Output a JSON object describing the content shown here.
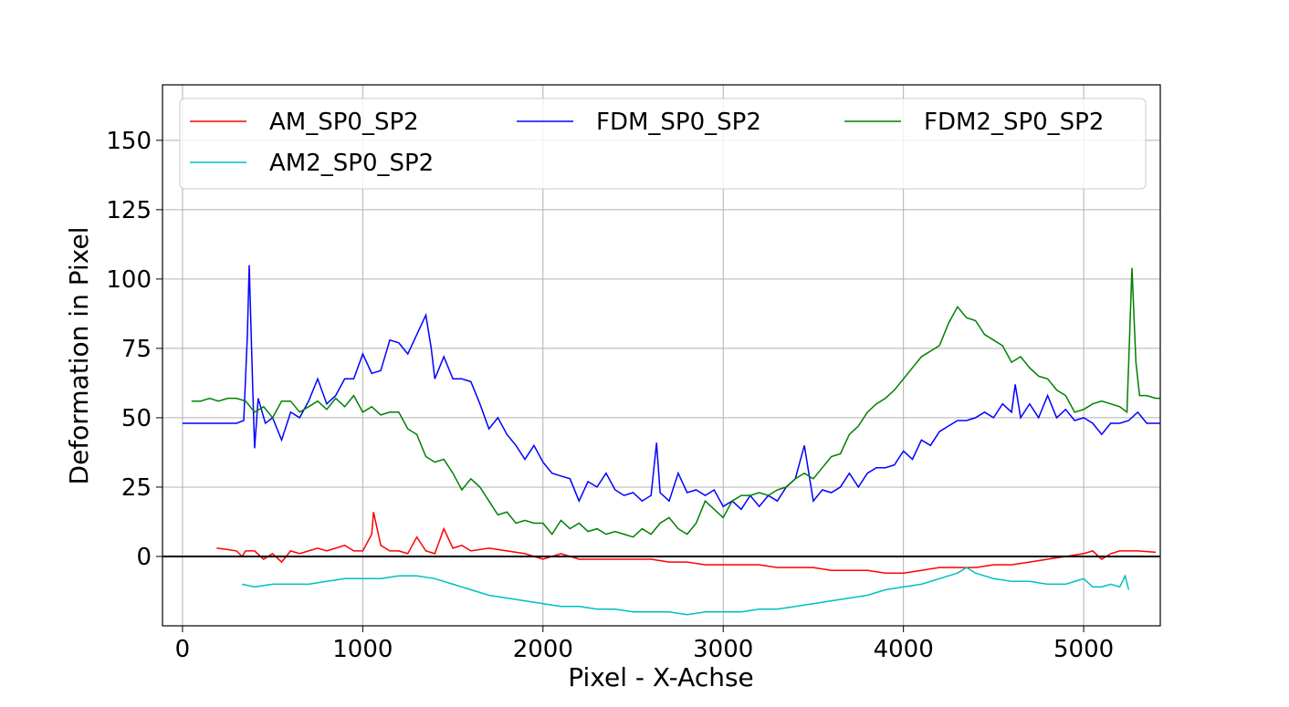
{
  "chart_data": {
    "type": "line",
    "x_label": "Pixel - X-Achse",
    "y_label": "Deformation in Pixel",
    "xlim": [
      -111,
      5425
    ],
    "ylim": [
      -25,
      170
    ],
    "xticks": [
      0,
      1000,
      2000,
      3000,
      4000,
      5000
    ],
    "yticks": [
      0,
      25,
      50,
      75,
      100,
      125,
      150
    ],
    "grid": true,
    "hline": 0,
    "legend": "upper center",
    "series": [
      {
        "name": "AM_SP0_SP2",
        "color": "#ff0000",
        "x": [
          190,
          250,
          300,
          330,
          350,
          400,
          450,
          500,
          550,
          600,
          650,
          700,
          750,
          800,
          850,
          900,
          950,
          1000,
          1050,
          1060,
          1100,
          1150,
          1200,
          1250,
          1300,
          1350,
          1400,
          1450,
          1500,
          1550,
          1600,
          1700,
          1800,
          1900,
          2000,
          2100,
          2200,
          2300,
          2400,
          2500,
          2600,
          2700,
          2800,
          2900,
          3000,
          3100,
          3200,
          3300,
          3400,
          3500,
          3600,
          3700,
          3800,
          3900,
          4000,
          4100,
          4200,
          4300,
          4400,
          4500,
          4600,
          4700,
          4800,
          4900,
          5000,
          5050,
          5100,
          5150,
          5200,
          5300,
          5400
        ],
        "values": [
          3,
          2.5,
          2,
          0,
          2,
          2,
          -1,
          1,
          -2,
          2,
          1,
          2,
          3,
          2,
          3,
          4,
          2,
          2,
          8,
          16,
          4,
          2,
          2,
          1,
          7,
          2,
          1,
          10,
          3,
          4,
          2,
          3,
          2,
          1,
          -1,
          1,
          -1,
          -1,
          -1,
          -1,
          -1,
          -2,
          -2,
          -3,
          -3,
          -3,
          -3,
          -4,
          -4,
          -4,
          -5,
          -5,
          -5,
          -6,
          -6,
          -5,
          -4,
          -4,
          -4,
          -3,
          -3,
          -2,
          -1,
          0,
          1,
          2,
          -1,
          1,
          2,
          2,
          1.5
        ]
      },
      {
        "name": "AM2_SP0_SP2",
        "color": "#00bfbf",
        "x": [
          330,
          400,
          500,
          600,
          700,
          800,
          900,
          1000,
          1100,
          1200,
          1300,
          1400,
          1500,
          1600,
          1700,
          1800,
          1900,
          2000,
          2100,
          2200,
          2300,
          2400,
          2500,
          2600,
          2700,
          2800,
          2900,
          3000,
          3100,
          3200,
          3300,
          3400,
          3500,
          3600,
          3700,
          3800,
          3900,
          4000,
          4100,
          4200,
          4300,
          4350,
          4400,
          4500,
          4600,
          4700,
          4800,
          4900,
          5000,
          5050,
          5100,
          5150,
          5200,
          5230,
          5250
        ],
        "values": [
          -10,
          -11,
          -10,
          -10,
          -10,
          -9,
          -8,
          -8,
          -8,
          -7,
          -7,
          -8,
          -10,
          -12,
          -14,
          -15,
          -16,
          -17,
          -18,
          -18,
          -19,
          -19,
          -20,
          -20,
          -20,
          -21,
          -20,
          -20,
          -20,
          -19,
          -19,
          -18,
          -17,
          -16,
          -15,
          -14,
          -12,
          -11,
          -10,
          -8,
          -6,
          -4,
          -6,
          -8,
          -9,
          -9,
          -10,
          -10,
          -8,
          -11,
          -11,
          -10,
          -11,
          -7,
          -12
        ]
      },
      {
        "name": "FDM_SP0_SP2",
        "color": "#0000ff",
        "x": [
          0,
          100,
          200,
          300,
          340,
          360,
          370,
          390,
          400,
          420,
          460,
          500,
          550,
          600,
          650,
          700,
          750,
          800,
          850,
          900,
          950,
          1000,
          1050,
          1100,
          1150,
          1200,
          1250,
          1300,
          1350,
          1380,
          1400,
          1450,
          1500,
          1550,
          1600,
          1650,
          1700,
          1750,
          1800,
          1850,
          1900,
          1950,
          2000,
          2050,
          2100,
          2150,
          2200,
          2250,
          2300,
          2350,
          2400,
          2450,
          2500,
          2550,
          2600,
          2630,
          2650,
          2700,
          2750,
          2800,
          2850,
          2900,
          2950,
          3000,
          3050,
          3100,
          3150,
          3200,
          3250,
          3300,
          3350,
          3400,
          3450,
          3500,
          3550,
          3600,
          3650,
          3700,
          3750,
          3800,
          3850,
          3900,
          3950,
          4000,
          4050,
          4100,
          4150,
          4200,
          4250,
          4300,
          4350,
          4400,
          4450,
          4500,
          4550,
          4600,
          4620,
          4650,
          4700,
          4750,
          4800,
          4850,
          4900,
          4950,
          5000,
          5050,
          5100,
          5150,
          5200,
          5250,
          5300,
          5350,
          5400,
          5425
        ],
        "values": [
          48,
          48,
          48,
          48,
          49,
          80,
          105,
          60,
          39,
          57,
          48,
          50,
          42,
          52,
          50,
          56,
          64,
          55,
          58,
          64,
          64,
          73,
          66,
          67,
          78,
          77,
          73,
          80,
          87,
          75,
          64,
          72,
          64,
          64,
          63,
          55,
          46,
          50,
          44,
          40,
          35,
          40,
          34,
          30,
          29,
          28,
          20,
          27,
          25,
          30,
          24,
          22,
          23,
          20,
          22,
          41,
          23,
          20,
          30,
          23,
          24,
          22,
          24,
          18,
          20,
          17,
          22,
          18,
          22,
          20,
          25,
          28,
          40,
          20,
          24,
          23,
          25,
          30,
          25,
          30,
          32,
          32,
          33,
          38,
          35,
          42,
          40,
          45,
          47,
          49,
          49,
          50,
          52,
          50,
          55,
          52,
          62,
          50,
          55,
          50,
          58,
          50,
          53,
          49,
          50,
          48,
          44,
          48,
          48,
          49,
          52,
          48,
          48,
          48
        ]
      },
      {
        "name": "FDM2_SP0_SP2",
        "color": "#008000",
        "x": [
          50,
          100,
          150,
          200,
          250,
          300,
          350,
          400,
          450,
          500,
          550,
          600,
          650,
          700,
          750,
          800,
          850,
          900,
          950,
          1000,
          1050,
          1100,
          1150,
          1200,
          1250,
          1300,
          1350,
          1400,
          1450,
          1500,
          1550,
          1600,
          1650,
          1700,
          1750,
          1800,
          1850,
          1900,
          1950,
          2000,
          2050,
          2100,
          2150,
          2200,
          2250,
          2300,
          2350,
          2400,
          2450,
          2500,
          2550,
          2600,
          2650,
          2700,
          2750,
          2800,
          2850,
          2900,
          2950,
          3000,
          3050,
          3100,
          3150,
          3200,
          3250,
          3300,
          3350,
          3400,
          3450,
          3500,
          3550,
          3600,
          3650,
          3700,
          3750,
          3800,
          3850,
          3900,
          3950,
          4000,
          4050,
          4100,
          4150,
          4200,
          4250,
          4300,
          4350,
          4400,
          4450,
          4500,
          4550,
          4600,
          4650,
          4700,
          4750,
          4800,
          4850,
          4900,
          4950,
          5000,
          5050,
          5100,
          5150,
          5200,
          5240,
          5268,
          5290,
          5310,
          5350,
          5400,
          5425
        ],
        "values": [
          56,
          56,
          57,
          56,
          57,
          57,
          56,
          52,
          54,
          50,
          56,
          56,
          52,
          54,
          56,
          53,
          57,
          54,
          58,
          52,
          54,
          51,
          52,
          52,
          46,
          44,
          36,
          34,
          35,
          30,
          24,
          28,
          25,
          20,
          15,
          16,
          12,
          13,
          12,
          12,
          8,
          13,
          10,
          12,
          9,
          10,
          8,
          9,
          8,
          7,
          10,
          8,
          12,
          14,
          10,
          8,
          12,
          20,
          17,
          14,
          20,
          22,
          22,
          23,
          22,
          24,
          25,
          28,
          30,
          28,
          32,
          36,
          37,
          44,
          47,
          52,
          55,
          57,
          60,
          64,
          68,
          72,
          74,
          76,
          84,
          90,
          86,
          85,
          80,
          78,
          76,
          70,
          72,
          68,
          65,
          64,
          60,
          58,
          52,
          53,
          55,
          56,
          55,
          54,
          52,
          104,
          70,
          58,
          58,
          57,
          57
        ]
      }
    ]
  }
}
